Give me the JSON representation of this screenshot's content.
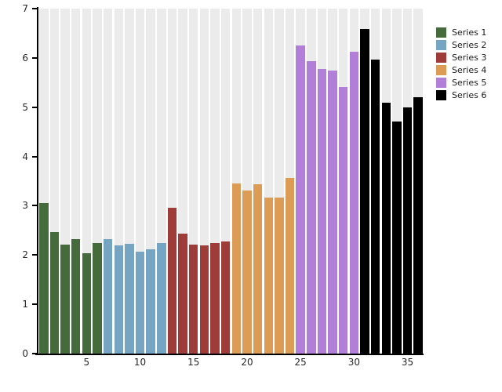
{
  "chart_data": {
    "type": "bar",
    "title": "",
    "xlabel": "",
    "ylabel": "",
    "ylim": [
      0,
      7
    ],
    "yticks": [
      0,
      1,
      2,
      3,
      4,
      5,
      6,
      7
    ],
    "xticks": [
      5,
      10,
      15,
      20,
      25,
      30,
      35
    ],
    "x_range": [
      1,
      36
    ],
    "grid": "background-bands-per-bar",
    "band_color": "#ebebeb",
    "axis_color": "#000000",
    "tick_label_color": "#262626",
    "legend_position": "outside-upper-right",
    "series": [
      {
        "name": "Series 1",
        "color": "#456b3c",
        "x_start": 1,
        "values": [
          3.05,
          2.46,
          2.21,
          2.33,
          2.04,
          2.25
        ]
      },
      {
        "name": "Series 2",
        "color": "#76a5c4",
        "x_start": 7,
        "values": [
          2.32,
          2.2,
          2.22,
          2.07,
          2.12,
          2.24
        ]
      },
      {
        "name": "Series 3",
        "color": "#9e3c3a",
        "x_start": 13,
        "values": [
          2.96,
          2.43,
          2.21,
          2.19,
          2.24,
          2.28
        ]
      },
      {
        "name": "Series 4",
        "color": "#dc9c55",
        "x_start": 19,
        "values": [
          3.45,
          3.31,
          3.43,
          3.16,
          3.16,
          3.57
        ]
      },
      {
        "name": "Series 5",
        "color": "#b27fd8",
        "x_start": 25,
        "values": [
          6.25,
          5.93,
          5.77,
          5.74,
          5.41,
          6.12
        ]
      },
      {
        "name": "Series 6",
        "color": "#000000",
        "x_start": 31,
        "values": [
          6.59,
          5.97,
          5.09,
          4.71,
          4.99,
          5.2
        ]
      }
    ]
  }
}
